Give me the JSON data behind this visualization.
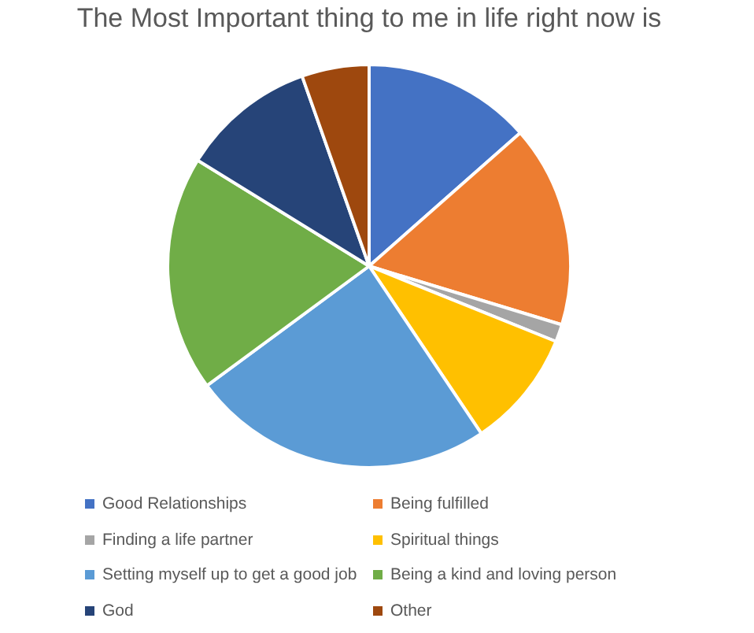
{
  "chart_data": {
    "type": "pie",
    "title": "The Most Important thing to me in life right now is",
    "categories": [
      "Good Relationships",
      "Being fulfilled",
      "Finding a life partner",
      "Spiritual things",
      "Setting myself up to get a good job",
      "Being a kind and loving person",
      "God",
      "Other"
    ],
    "values": [
      13.5,
      16.2,
      1.4,
      9.5,
      24.3,
      18.9,
      10.8,
      5.4
    ],
    "colors": [
      "#4472c4",
      "#ed7d31",
      "#a5a5a5",
      "#ffc000",
      "#5b9bd5",
      "#70ad47",
      "#264478",
      "#9e480e"
    ],
    "legend": "bottom"
  }
}
